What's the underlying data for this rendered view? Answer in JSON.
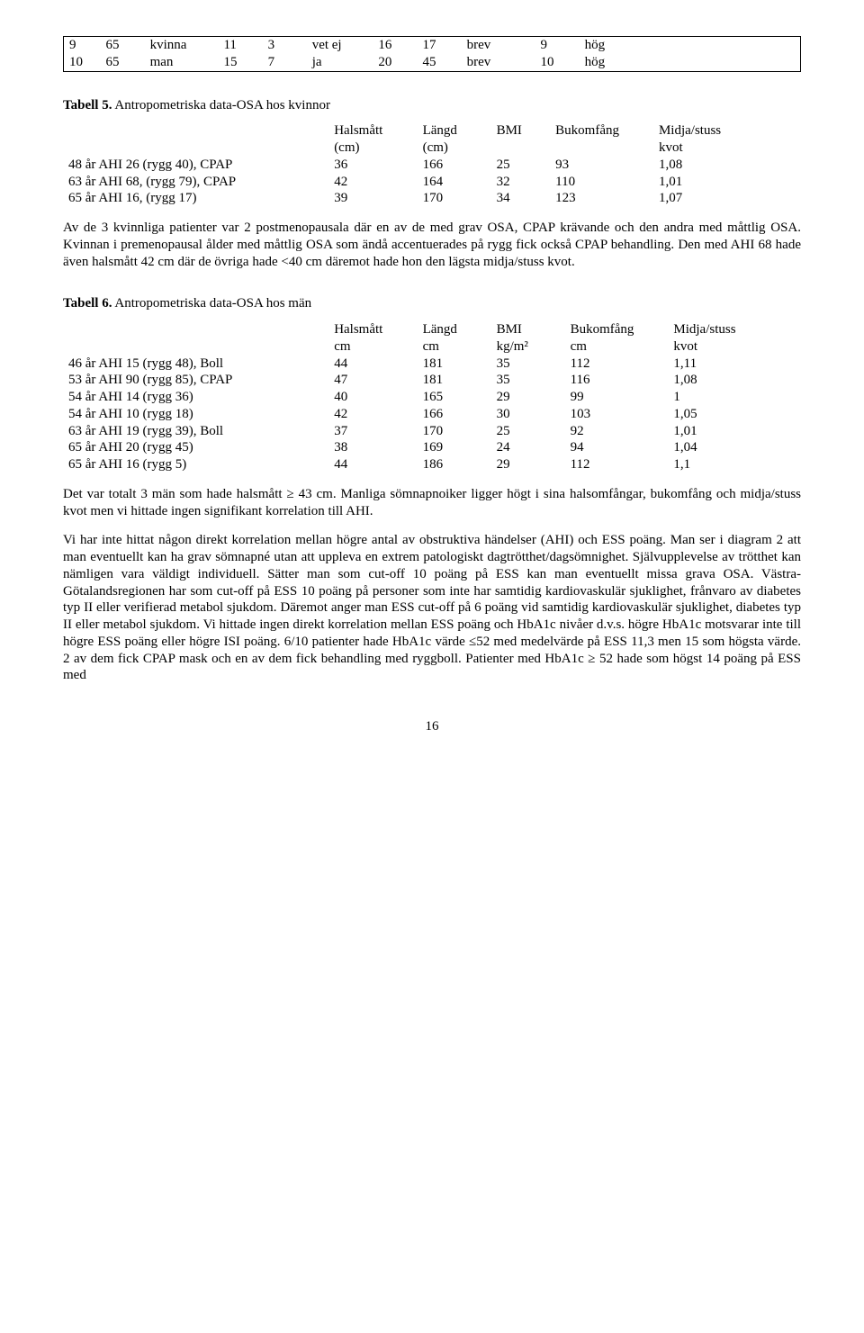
{
  "top_table": {
    "rows": [
      [
        "9",
        "65",
        "kvinna",
        "11",
        "3",
        "vet ej",
        "16",
        "17",
        "brev",
        "9",
        "hög"
      ],
      [
        "10",
        "65",
        "man",
        "15",
        "7",
        "ja",
        "20",
        "45",
        "brev",
        "10",
        "hög"
      ]
    ],
    "col_widths": [
      "5%",
      "6%",
      "10%",
      "6%",
      "6%",
      "9%",
      "6%",
      "6%",
      "10%",
      "6%",
      "30%"
    ]
  },
  "table5": {
    "label_bold": "Tabell 5.",
    "label_rest": " Antropometriska data-OSA hos kvinnor",
    "headers": [
      "",
      "Halsmått\n(cm)",
      "Längd\n(cm)",
      "BMI",
      "Bukomfång",
      "Midja/stuss\nkvot"
    ],
    "rows": [
      [
        "48 år AHI 26 (rygg 40), CPAP",
        "36",
        "166",
        "25",
        "93",
        "1,08"
      ],
      [
        "63 år AHI 68, (rygg 79), CPAP",
        "42",
        "164",
        "32",
        "110",
        "1,01"
      ],
      [
        "65 år AHI 16, (rygg 17)",
        "39",
        "170",
        "34",
        "123",
        "1,07"
      ]
    ],
    "col_widths": [
      "36%",
      "12%",
      "10%",
      "8%",
      "14%",
      "20%"
    ]
  },
  "para1": "Av de 3 kvinnliga patienter var 2 postmenopausala där en av de med grav OSA, CPAP krävande och den andra med måttlig OSA. Kvinnan i premenopausal ålder med måttlig OSA som ändå accentuerades på rygg fick också CPAP behandling. Den med AHI 68 hade även halsmått 42 cm där de övriga hade <40 cm däremot hade hon den lägsta midja/stuss kvot.",
  "table6": {
    "label_bold": "Tabell 6.",
    "label_rest": " Antropometriska data-OSA hos män",
    "headers": [
      "",
      "Halsmått\ncm",
      "Längd\ncm",
      "BMI\nkg/m²",
      "Bukomfång\ncm",
      "Midja/stuss\nkvot"
    ],
    "rows": [
      [
        "46 år AHI 15 (rygg 48), Boll",
        "44",
        "181",
        "35",
        "112",
        "1,11"
      ],
      [
        "53 år AHI 90 (rygg 85), CPAP",
        "47",
        "181",
        "35",
        "116",
        "1,08"
      ],
      [
        "54 år AHI 14 (rygg 36)",
        "40",
        "165",
        "29",
        "99",
        "1"
      ],
      [
        "54 år AHI 10 (rygg 18)",
        "42",
        "166",
        "30",
        "103",
        "1,05"
      ],
      [
        "63 år AHI 19 (rygg 39), Boll",
        "37",
        "170",
        "25",
        "92",
        "1,01"
      ],
      [
        "65 år AHI 20 (rygg 45)",
        "38",
        "169",
        "24",
        "94",
        "1,04"
      ],
      [
        "65 år AHI 16 (rygg 5)",
        "44",
        "186",
        "29",
        "112",
        "1,1"
      ]
    ],
    "col_widths": [
      "36%",
      "12%",
      "10%",
      "10%",
      "14%",
      "18%"
    ]
  },
  "para2": "Det var totalt 3 män som hade halsmått ≥ 43 cm. Manliga sömnapnoiker ligger högt i sina halsomfångar, bukomfång och midja/stuss kvot men vi hittade ingen signifikant korrelation till AHI.",
  "para3": "Vi har inte hittat någon direkt korrelation mellan högre antal av obstruktiva händelser (AHI) och ESS poäng. Man ser i diagram 2 att man eventuellt kan ha grav sömnapné utan att uppleva en extrem patologiskt dagtrötthet/dagsömnighet. Självupplevelse av trötthet kan nämligen vara väldigt individuell. Sätter man som cut-off 10 poäng på ESS kan man eventuellt missa grava OSA. Västra-Götalandsregionen har som cut-off på ESS 10 poäng på personer som inte har samtidig kardiovaskulär sjuklighet, frånvaro av diabetes typ II eller verifierad metabol sjukdom. Däremot anger man ESS cut-off på 6 poäng vid samtidig kardiovaskulär sjuklighet, diabetes typ II eller metabol sjukdom. Vi hittade ingen direkt korrelation mellan ESS poäng och HbA1c nivåer d.v.s. högre HbA1c motsvarar inte till högre ESS poäng eller högre ISI poäng. 6/10 patienter hade HbA1c värde ≤52 med medelvärde på ESS 11,3 men 15 som högsta värde. 2 av dem fick CPAP mask och en av dem fick behandling med ryggboll. Patienter med HbA1c ≥ 52 hade som högst 14 poäng på ESS med",
  "page_number": "16"
}
